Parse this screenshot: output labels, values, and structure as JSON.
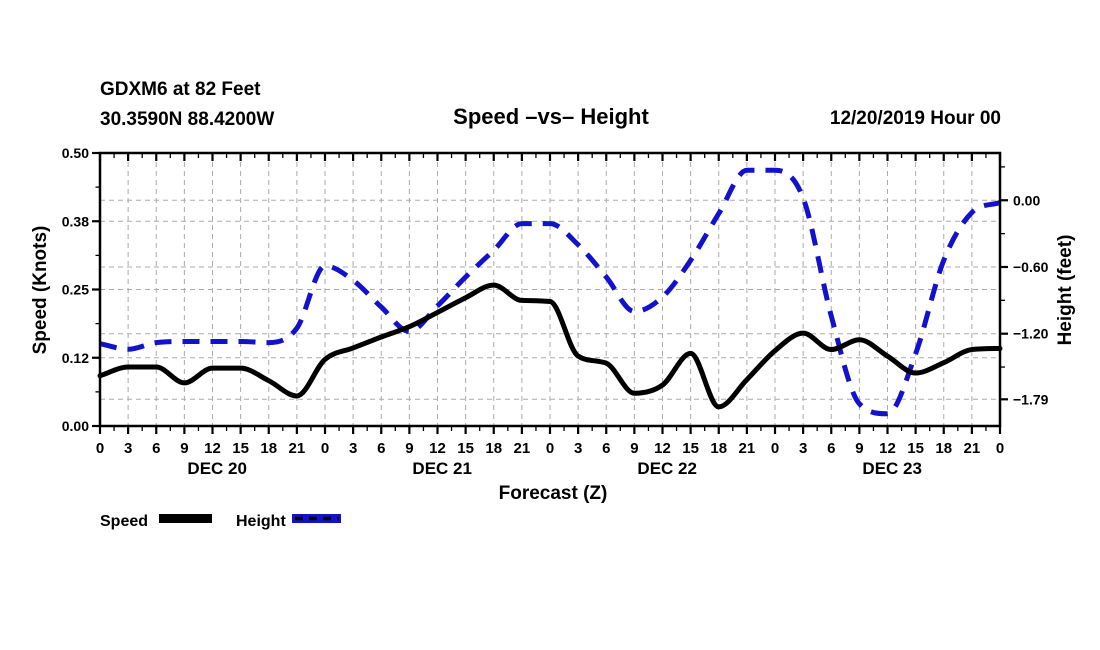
{
  "header": {
    "station_line1": "GDXM6 at 82 Feet",
    "station_line2": "30.3590N 88.4200W",
    "title": "Speed –vs– Height",
    "datetime": "12/20/2019 Hour 00"
  },
  "axes": {
    "x_label": "Forecast (Z)",
    "left_label": "Speed (Knots)",
    "right_label": "Height (feet)"
  },
  "legend": {
    "speed_label": "Speed",
    "height_label": "Height"
  },
  "chart_data": {
    "type": "line",
    "title": "Speed –vs– Height",
    "x_label": "Forecast (Z)",
    "x_hours": [
      0,
      3,
      6,
      9,
      12,
      15,
      18,
      21,
      24,
      27,
      30,
      33,
      36,
      39,
      42,
      45,
      48,
      51,
      54,
      57,
      60,
      63,
      66,
      69,
      72,
      75,
      78,
      81,
      84,
      87,
      90,
      93,
      96
    ],
    "hour_tick_labels": [
      "0",
      "3",
      "6",
      "9",
      "12",
      "15",
      "18",
      "21",
      "0",
      "3",
      "6",
      "9",
      "12",
      "15",
      "18",
      "21",
      "0",
      "3",
      "6",
      "9",
      "12",
      "15",
      "18",
      "21",
      "0",
      "3",
      "6",
      "9",
      "12",
      "15",
      "18",
      "21",
      "0"
    ],
    "day_labels": [
      "DEC 20",
      "DEC 21",
      "DEC 22",
      "DEC 23"
    ],
    "left_axis": {
      "label": "Speed (Knots)",
      "range": [
        0,
        0.5
      ],
      "tick_values": [
        0.5,
        0.375,
        0.25,
        0.125,
        0
      ],
      "tick_labels": [
        "0.50",
        "0.38",
        "0.25",
        "0.12",
        "0.00"
      ],
      "minor_tick_values": [
        0.4375,
        0.3125,
        0.1875,
        0.0625
      ]
    },
    "right_axis": {
      "label": "Height (feet)",
      "range_top": 0.425,
      "range_bottom": -2.03,
      "tick_values": [
        0,
        -0.6,
        -1.2,
        -1.79
      ],
      "tick_labels": [
        "0.00",
        "−0.60",
        "−1.20",
        "−1.79"
      ],
      "minor_tick_values": [
        0.3,
        -0.3,
        -0.9,
        -1.5
      ]
    },
    "series": [
      {
        "name": "Speed",
        "axis": "left",
        "style": "solid",
        "color": "#000000",
        "values": [
          0.092,
          0.108,
          0.108,
          0.079,
          0.106,
          0.106,
          0.083,
          0.055,
          0.122,
          0.143,
          0.163,
          0.182,
          0.208,
          0.235,
          0.258,
          0.23,
          0.228,
          0.128,
          0.115,
          0.06,
          0.075,
          0.133,
          0.035,
          0.085,
          0.138,
          0.17,
          0.14,
          0.158,
          0.128,
          0.097,
          0.116,
          0.14,
          0.142
        ]
      },
      {
        "name": "Height",
        "axis": "right",
        "style": "dashed",
        "color": "#1212cd",
        "values": [
          -1.29,
          -1.34,
          -1.28,
          -1.27,
          -1.27,
          -1.27,
          -1.28,
          -1.15,
          -0.59,
          -0.72,
          -0.96,
          -1.18,
          -0.95,
          -0.69,
          -0.45,
          -0.21,
          -0.21,
          -0.4,
          -0.69,
          -1.0,
          -0.87,
          -0.54,
          -0.12,
          0.27,
          0.27,
          0.02,
          -1.04,
          -1.83,
          -1.92,
          -1.38,
          -0.54,
          -0.11,
          -0.02
        ]
      }
    ],
    "grid": {
      "color": "#ababab",
      "dashed": true,
      "vertical_every_hours": 3
    },
    "legend_position": "bottom-left"
  }
}
